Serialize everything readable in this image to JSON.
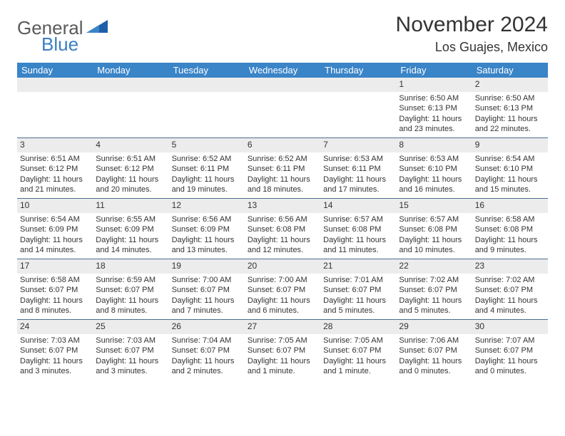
{
  "brand": {
    "name": "General",
    "sub": "Blue"
  },
  "header": {
    "month_title": "November 2024",
    "location": "Los Guajes, Mexico"
  },
  "colors": {
    "header_bg": "#3a84c8",
    "header_text": "#ffffff",
    "daynum_bg": "#ececec",
    "text": "#333333",
    "divider": "#4b6e92",
    "brand_blue": "#3a7fc4",
    "brand_grey": "#5a5a5a",
    "page_bg": "#ffffff"
  },
  "weekdays": [
    "Sunday",
    "Monday",
    "Tuesday",
    "Wednesday",
    "Thursday",
    "Friday",
    "Saturday"
  ],
  "weeks": [
    [
      {
        "blank": true
      },
      {
        "blank": true
      },
      {
        "blank": true
      },
      {
        "blank": true
      },
      {
        "blank": true
      },
      {
        "day": "1",
        "l1": "Sunrise: 6:50 AM",
        "l2": "Sunset: 6:13 PM",
        "l3": "Daylight: 11 hours",
        "l4": "and 23 minutes."
      },
      {
        "day": "2",
        "l1": "Sunrise: 6:50 AM",
        "l2": "Sunset: 6:13 PM",
        "l3": "Daylight: 11 hours",
        "l4": "and 22 minutes."
      }
    ],
    [
      {
        "day": "3",
        "l1": "Sunrise: 6:51 AM",
        "l2": "Sunset: 6:12 PM",
        "l3": "Daylight: 11 hours",
        "l4": "and 21 minutes."
      },
      {
        "day": "4",
        "l1": "Sunrise: 6:51 AM",
        "l2": "Sunset: 6:12 PM",
        "l3": "Daylight: 11 hours",
        "l4": "and 20 minutes."
      },
      {
        "day": "5",
        "l1": "Sunrise: 6:52 AM",
        "l2": "Sunset: 6:11 PM",
        "l3": "Daylight: 11 hours",
        "l4": "and 19 minutes."
      },
      {
        "day": "6",
        "l1": "Sunrise: 6:52 AM",
        "l2": "Sunset: 6:11 PM",
        "l3": "Daylight: 11 hours",
        "l4": "and 18 minutes."
      },
      {
        "day": "7",
        "l1": "Sunrise: 6:53 AM",
        "l2": "Sunset: 6:11 PM",
        "l3": "Daylight: 11 hours",
        "l4": "and 17 minutes."
      },
      {
        "day": "8",
        "l1": "Sunrise: 6:53 AM",
        "l2": "Sunset: 6:10 PM",
        "l3": "Daylight: 11 hours",
        "l4": "and 16 minutes."
      },
      {
        "day": "9",
        "l1": "Sunrise: 6:54 AM",
        "l2": "Sunset: 6:10 PM",
        "l3": "Daylight: 11 hours",
        "l4": "and 15 minutes."
      }
    ],
    [
      {
        "day": "10",
        "l1": "Sunrise: 6:54 AM",
        "l2": "Sunset: 6:09 PM",
        "l3": "Daylight: 11 hours",
        "l4": "and 14 minutes."
      },
      {
        "day": "11",
        "l1": "Sunrise: 6:55 AM",
        "l2": "Sunset: 6:09 PM",
        "l3": "Daylight: 11 hours",
        "l4": "and 14 minutes."
      },
      {
        "day": "12",
        "l1": "Sunrise: 6:56 AM",
        "l2": "Sunset: 6:09 PM",
        "l3": "Daylight: 11 hours",
        "l4": "and 13 minutes."
      },
      {
        "day": "13",
        "l1": "Sunrise: 6:56 AM",
        "l2": "Sunset: 6:08 PM",
        "l3": "Daylight: 11 hours",
        "l4": "and 12 minutes."
      },
      {
        "day": "14",
        "l1": "Sunrise: 6:57 AM",
        "l2": "Sunset: 6:08 PM",
        "l3": "Daylight: 11 hours",
        "l4": "and 11 minutes."
      },
      {
        "day": "15",
        "l1": "Sunrise: 6:57 AM",
        "l2": "Sunset: 6:08 PM",
        "l3": "Daylight: 11 hours",
        "l4": "and 10 minutes."
      },
      {
        "day": "16",
        "l1": "Sunrise: 6:58 AM",
        "l2": "Sunset: 6:08 PM",
        "l3": "Daylight: 11 hours",
        "l4": "and 9 minutes."
      }
    ],
    [
      {
        "day": "17",
        "l1": "Sunrise: 6:58 AM",
        "l2": "Sunset: 6:07 PM",
        "l3": "Daylight: 11 hours",
        "l4": "and 8 minutes."
      },
      {
        "day": "18",
        "l1": "Sunrise: 6:59 AM",
        "l2": "Sunset: 6:07 PM",
        "l3": "Daylight: 11 hours",
        "l4": "and 8 minutes."
      },
      {
        "day": "19",
        "l1": "Sunrise: 7:00 AM",
        "l2": "Sunset: 6:07 PM",
        "l3": "Daylight: 11 hours",
        "l4": "and 7 minutes."
      },
      {
        "day": "20",
        "l1": "Sunrise: 7:00 AM",
        "l2": "Sunset: 6:07 PM",
        "l3": "Daylight: 11 hours",
        "l4": "and 6 minutes."
      },
      {
        "day": "21",
        "l1": "Sunrise: 7:01 AM",
        "l2": "Sunset: 6:07 PM",
        "l3": "Daylight: 11 hours",
        "l4": "and 5 minutes."
      },
      {
        "day": "22",
        "l1": "Sunrise: 7:02 AM",
        "l2": "Sunset: 6:07 PM",
        "l3": "Daylight: 11 hours",
        "l4": "and 5 minutes."
      },
      {
        "day": "23",
        "l1": "Sunrise: 7:02 AM",
        "l2": "Sunset: 6:07 PM",
        "l3": "Daylight: 11 hours",
        "l4": "and 4 minutes."
      }
    ],
    [
      {
        "day": "24",
        "l1": "Sunrise: 7:03 AM",
        "l2": "Sunset: 6:07 PM",
        "l3": "Daylight: 11 hours",
        "l4": "and 3 minutes."
      },
      {
        "day": "25",
        "l1": "Sunrise: 7:03 AM",
        "l2": "Sunset: 6:07 PM",
        "l3": "Daylight: 11 hours",
        "l4": "and 3 minutes."
      },
      {
        "day": "26",
        "l1": "Sunrise: 7:04 AM",
        "l2": "Sunset: 6:07 PM",
        "l3": "Daylight: 11 hours",
        "l4": "and 2 minutes."
      },
      {
        "day": "27",
        "l1": "Sunrise: 7:05 AM",
        "l2": "Sunset: 6:07 PM",
        "l3": "Daylight: 11 hours",
        "l4": "and 1 minute."
      },
      {
        "day": "28",
        "l1": "Sunrise: 7:05 AM",
        "l2": "Sunset: 6:07 PM",
        "l3": "Daylight: 11 hours",
        "l4": "and 1 minute."
      },
      {
        "day": "29",
        "l1": "Sunrise: 7:06 AM",
        "l2": "Sunset: 6:07 PM",
        "l3": "Daylight: 11 hours",
        "l4": "and 0 minutes."
      },
      {
        "day": "30",
        "l1": "Sunrise: 7:07 AM",
        "l2": "Sunset: 6:07 PM",
        "l3": "Daylight: 11 hours",
        "l4": "and 0 minutes."
      }
    ]
  ]
}
